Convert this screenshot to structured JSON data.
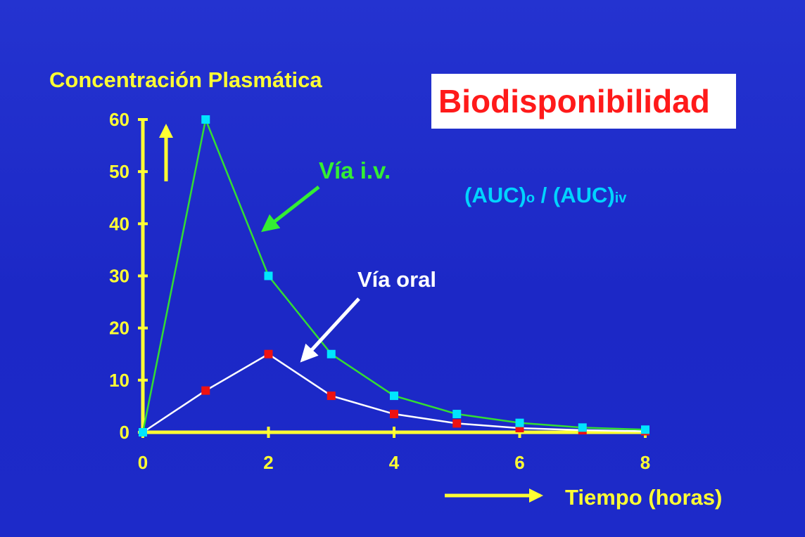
{
  "chart_data": {
    "type": "line",
    "title": "Biodisponibilidad",
    "ylabel": "Concentración Plasmática",
    "xlabel": "Tiempo (horas)",
    "xlim": [
      0,
      8
    ],
    "ylim": [
      0,
      60
    ],
    "xticks": [
      "0",
      "2",
      "4",
      "6",
      "8"
    ],
    "yticks": [
      "0",
      "10",
      "20",
      "30",
      "40",
      "50",
      "60"
    ],
    "x": [
      0,
      1,
      2,
      3,
      4,
      5,
      6,
      7,
      8
    ],
    "series": [
      {
        "name": "Vía i.v.",
        "values": [
          0,
          60,
          30,
          15,
          7,
          3.5,
          1.8,
          0.9,
          0.5
        ],
        "line_color": "#33dd33",
        "marker_color": "#00e5ff"
      },
      {
        "name": "Vía oral",
        "values": [
          0,
          8,
          15,
          7,
          3.5,
          1.7,
          0.8,
          0.4,
          0.2
        ],
        "line_color": "#ffffff",
        "marker_color": "#ee1111"
      }
    ],
    "annotations": {
      "formula_main_1": "(AUC)",
      "formula_sub_1": "o",
      "formula_sep": " / ",
      "formula_main_2": "(AUC)",
      "formula_sub_2": "iv"
    },
    "axis_color": "#ffff33",
    "grid": false
  }
}
